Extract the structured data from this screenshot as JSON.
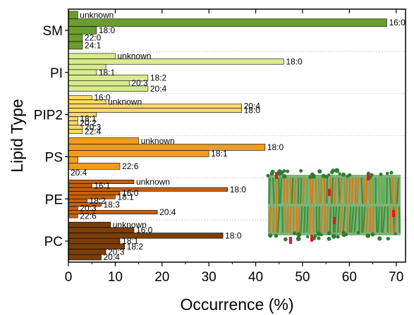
{
  "chart_data": {
    "type": "bar",
    "orientation": "horizontal",
    "xlabel": "Occurrence (%)",
    "ylabel": "Lipid Type",
    "xlim": [
      0,
      72
    ],
    "xticks": [
      0,
      10,
      20,
      30,
      40,
      50,
      60,
      70
    ],
    "groups": [
      {
        "name": "SM",
        "color": "#6a9e2b",
        "bars": [
          {
            "value": 2,
            "label": "unknown"
          },
          {
            "value": 68,
            "label": "16:0"
          },
          {
            "value": 6,
            "label": "18:0"
          },
          {
            "value": 3,
            "label": "22:0"
          },
          {
            "value": 3,
            "label": "24:1"
          }
        ]
      },
      {
        "name": "PI",
        "color": "#d8ec8c",
        "bars": [
          {
            "value": 10,
            "label": "unknown"
          },
          {
            "value": 46,
            "label": "18:0"
          },
          {
            "value": 8,
            "label": ""
          },
          {
            "value": 6,
            "label": "18:1"
          },
          {
            "value": 17,
            "label": "18:2"
          },
          {
            "value": 13,
            "label": "20:3"
          },
          {
            "value": 17,
            "label": "20:4"
          }
        ]
      },
      {
        "name": "PIP2",
        "color": "#fcd966",
        "bars": [
          {
            "value": 5,
            "label": "16:0"
          },
          {
            "value": 8,
            "label": "unknown"
          },
          {
            "value": 37,
            "label": "20:4"
          },
          {
            "value": 37,
            "label": "18:0"
          },
          {
            "value": 6,
            "label": ""
          },
          {
            "value": 2,
            "label": "18:1"
          },
          {
            "value": 2,
            "label": "20:2"
          },
          {
            "value": 3,
            "label": "20:3"
          },
          {
            "value": 3,
            "label": "22:4"
          }
        ]
      },
      {
        "name": "PS",
        "color": "#f59a1f",
        "bars": [
          {
            "value": 15,
            "label": "unknown"
          },
          {
            "value": 42,
            "label": "18:0"
          },
          {
            "value": 30,
            "label": "18:1"
          },
          {
            "value": 2,
            "label": ""
          },
          {
            "value": 11,
            "label": "22:6"
          },
          {
            "value": 0,
            "label": "20:4"
          }
        ]
      },
      {
        "name": "PE",
        "color": "#c65f0d",
        "bars": [
          {
            "value": 14,
            "label": "unknown"
          },
          {
            "value": 5,
            "label": "16:1"
          },
          {
            "value": 34,
            "label": "18:0"
          },
          {
            "value": 11,
            "label": "16:0"
          },
          {
            "value": 10,
            "label": "18:1"
          },
          {
            "value": 4,
            "label": "18:2"
          },
          {
            "value": 7,
            "label": "18:3"
          },
          {
            "value": 2,
            "label": "20:3"
          },
          {
            "value": 19,
            "label": "20:4"
          },
          {
            "value": 2,
            "label": "22:6"
          }
        ]
      },
      {
        "name": "PC",
        "color": "#7a3e09",
        "bars": [
          {
            "value": 9,
            "label": "unknown"
          },
          {
            "value": 14,
            "label": "16:0"
          },
          {
            "value": 33,
            "label": "18:0"
          },
          {
            "value": 11,
            "label": "18:1"
          },
          {
            "value": 12,
            "label": "18:2"
          },
          {
            "value": 8,
            "label": "20:3"
          },
          {
            "value": 7,
            "label": "20:4"
          }
        ]
      }
    ],
    "inset_image": "lipid-bilayer-simulation-snapshot"
  }
}
